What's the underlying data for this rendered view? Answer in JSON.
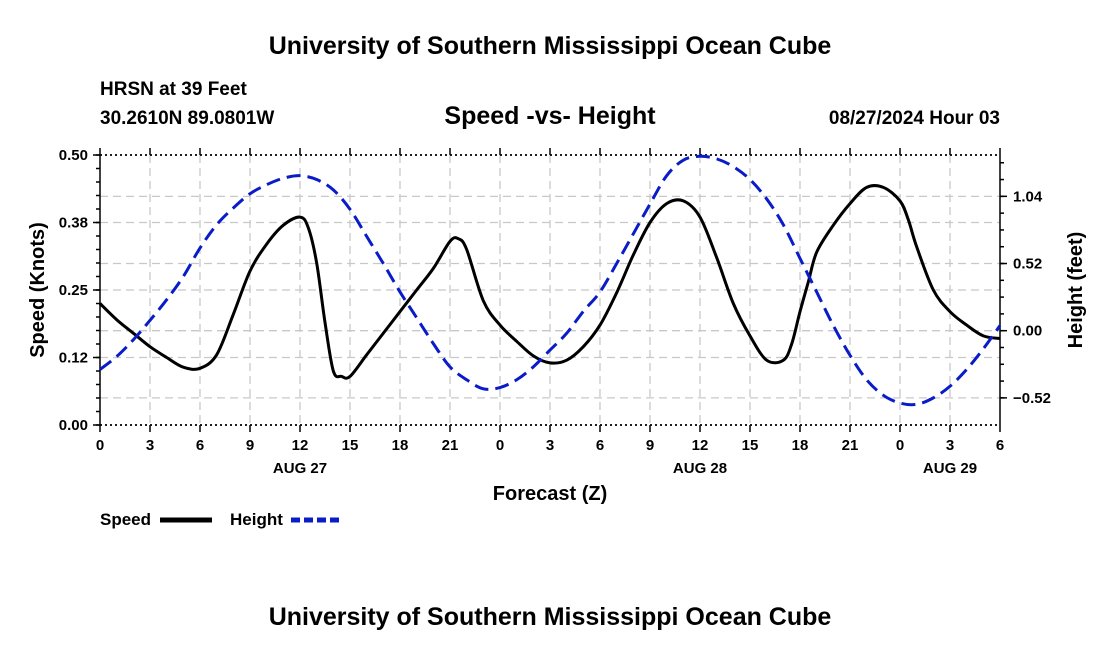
{
  "header": {
    "title": "University of Southern Mississippi Ocean Cube",
    "footer_title": "University of Southern Mississippi Ocean Cube",
    "station": "HRSN at 39 Feet",
    "coords": "30.2610N  89.0801W",
    "chart_title": "Speed -vs- Height",
    "datetime": "08/27/2024 Hour 03"
  },
  "legend": {
    "speed_label": "Speed",
    "height_label": "Height"
  },
  "colors": {
    "speed": "#000000",
    "height": "#0a1cc8"
  },
  "chart_data": {
    "type": "line",
    "title": "Speed -vs- Height",
    "xlabel": "Forecast (Z)",
    "ylabel": "Speed (Knots)",
    "y2label": "Height (feet)",
    "xlim": [
      0,
      54
    ],
    "ylim": [
      0,
      0.5
    ],
    "y2lim": [
      -0.73,
      1.36
    ],
    "x_ticks": [
      0,
      3,
      6,
      9,
      12,
      15,
      18,
      21,
      24,
      27,
      30,
      33,
      36,
      39,
      42,
      45,
      48,
      51,
      54
    ],
    "x_tick_labels": [
      "0",
      "3",
      "6",
      "9",
      "12",
      "15",
      "18",
      "21",
      "0",
      "3",
      "6",
      "9",
      "12",
      "15",
      "18",
      "21",
      "0",
      "3",
      "6"
    ],
    "y_ticks": [
      0,
      0.125,
      0.25,
      0.375,
      0.5
    ],
    "y_tick_labels": [
      "0.00",
      "0.12",
      "0.25",
      "0.38",
      "0.50"
    ],
    "y2_ticks": [
      -0.52,
      0.0,
      0.52,
      1.04
    ],
    "y2_tick_labels": [
      "−0.52",
      "0.00",
      "0.52",
      "1.04"
    ],
    "date_labels": [
      {
        "x": 12,
        "label": "AUG 27"
      },
      {
        "x": 36,
        "label": "AUG 28"
      },
      {
        "x": 51,
        "label": "AUG 29"
      }
    ],
    "grid": true,
    "legend_position": "bottom-left",
    "series": [
      {
        "name": "Speed",
        "axis": "left",
        "style": "solid",
        "x": [
          0,
          1,
          2,
          3,
          4,
          5,
          6,
          7,
          8,
          9,
          10,
          11,
          12,
          12.5,
          13,
          13.5,
          14,
          14.5,
          15,
          16,
          17,
          18,
          19,
          20,
          21,
          21.5,
          22,
          23,
          24,
          25,
          26,
          27,
          28,
          29,
          30,
          31,
          32,
          33,
          34,
          35,
          36,
          37,
          38,
          39,
          40,
          41,
          41.5,
          42,
          42.5,
          43,
          44,
          45,
          46,
          47,
          48,
          48.5,
          49,
          50,
          51,
          52,
          53,
          54
        ],
        "values": [
          0.225,
          0.195,
          0.17,
          0.145,
          0.125,
          0.107,
          0.105,
          0.13,
          0.205,
          0.285,
          0.335,
          0.37,
          0.385,
          0.365,
          0.3,
          0.19,
          0.1,
          0.09,
          0.09,
          0.13,
          0.17,
          0.21,
          0.25,
          0.29,
          0.34,
          0.345,
          0.325,
          0.23,
          0.185,
          0.155,
          0.128,
          0.115,
          0.12,
          0.145,
          0.185,
          0.245,
          0.315,
          0.375,
          0.41,
          0.415,
          0.385,
          0.31,
          0.225,
          0.165,
          0.12,
          0.12,
          0.15,
          0.21,
          0.265,
          0.32,
          0.37,
          0.41,
          0.44,
          0.44,
          0.415,
          0.38,
          0.33,
          0.25,
          0.21,
          0.185,
          0.165,
          0.16
        ]
      },
      {
        "name": "Height",
        "axis": "right",
        "style": "dashed",
        "x": [
          0,
          1,
          2,
          3,
          4,
          5,
          6,
          7,
          8,
          9,
          10,
          11,
          12,
          13,
          14,
          15,
          16,
          17,
          18,
          19,
          20,
          21,
          22,
          23,
          24,
          25,
          26,
          27,
          28,
          29,
          30,
          31,
          32,
          33,
          34,
          35,
          36,
          37,
          38,
          39,
          40,
          41,
          42,
          43,
          44,
          45,
          46,
          47,
          48,
          49,
          50,
          51,
          52,
          53,
          54
        ],
        "values": [
          -0.3,
          -0.2,
          -0.07,
          0.08,
          0.24,
          0.42,
          0.64,
          0.82,
          0.95,
          1.06,
          1.13,
          1.18,
          1.2,
          1.17,
          1.09,
          0.94,
          0.73,
          0.52,
          0.3,
          0.1,
          -0.1,
          -0.28,
          -0.38,
          -0.45,
          -0.44,
          -0.38,
          -0.28,
          -0.15,
          -0.02,
          0.15,
          0.3,
          0.52,
          0.75,
          0.98,
          1.2,
          1.32,
          1.35,
          1.33,
          1.27,
          1.17,
          1.02,
          0.82,
          0.56,
          0.3,
          0.04,
          -0.19,
          -0.38,
          -0.5,
          -0.56,
          -0.57,
          -0.52,
          -0.43,
          -0.3,
          -0.14,
          0.04
        ]
      }
    ]
  }
}
